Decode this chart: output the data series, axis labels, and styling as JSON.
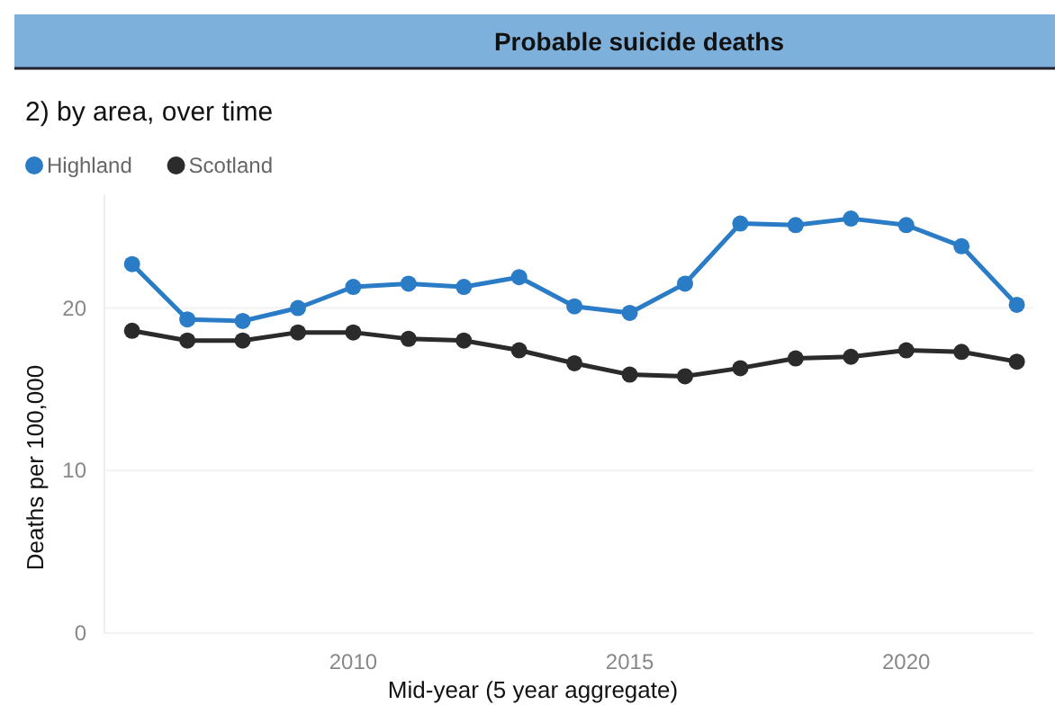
{
  "chart_data": {
    "type": "line",
    "title": "Probable suicide deaths",
    "subtitle": "2) by area, over time",
    "xlabel": "Mid-year (5 year aggregate)",
    "ylabel": "Deaths per 100,000",
    "x": [
      2006,
      2007,
      2008,
      2009,
      2010,
      2011,
      2012,
      2013,
      2014,
      2015,
      2016,
      2017,
      2018,
      2019,
      2020,
      2021,
      2022
    ],
    "series": [
      {
        "name": "Highland",
        "color": "#2a7cc7",
        "values": [
          22.7,
          19.3,
          19.2,
          20.0,
          21.3,
          21.5,
          21.3,
          21.9,
          20.1,
          19.7,
          21.5,
          25.2,
          25.1,
          25.5,
          25.1,
          23.8,
          20.2
        ]
      },
      {
        "name": "Scotland",
        "color": "#2b2b2b",
        "values": [
          18.6,
          18.0,
          18.0,
          18.5,
          18.5,
          18.1,
          18.0,
          17.4,
          16.6,
          15.9,
          15.8,
          16.3,
          16.9,
          17.0,
          17.4,
          17.3,
          16.7
        ]
      }
    ],
    "xlim": [
      2005.5,
      2022.3
    ],
    "xticks": [
      2010,
      2015,
      2020
    ],
    "ylim": [
      0,
      27
    ],
    "yticks": [
      0,
      10,
      20
    ],
    "grid": "y",
    "legend": "top left",
    "marker": "circle",
    "line_style": "solid"
  }
}
